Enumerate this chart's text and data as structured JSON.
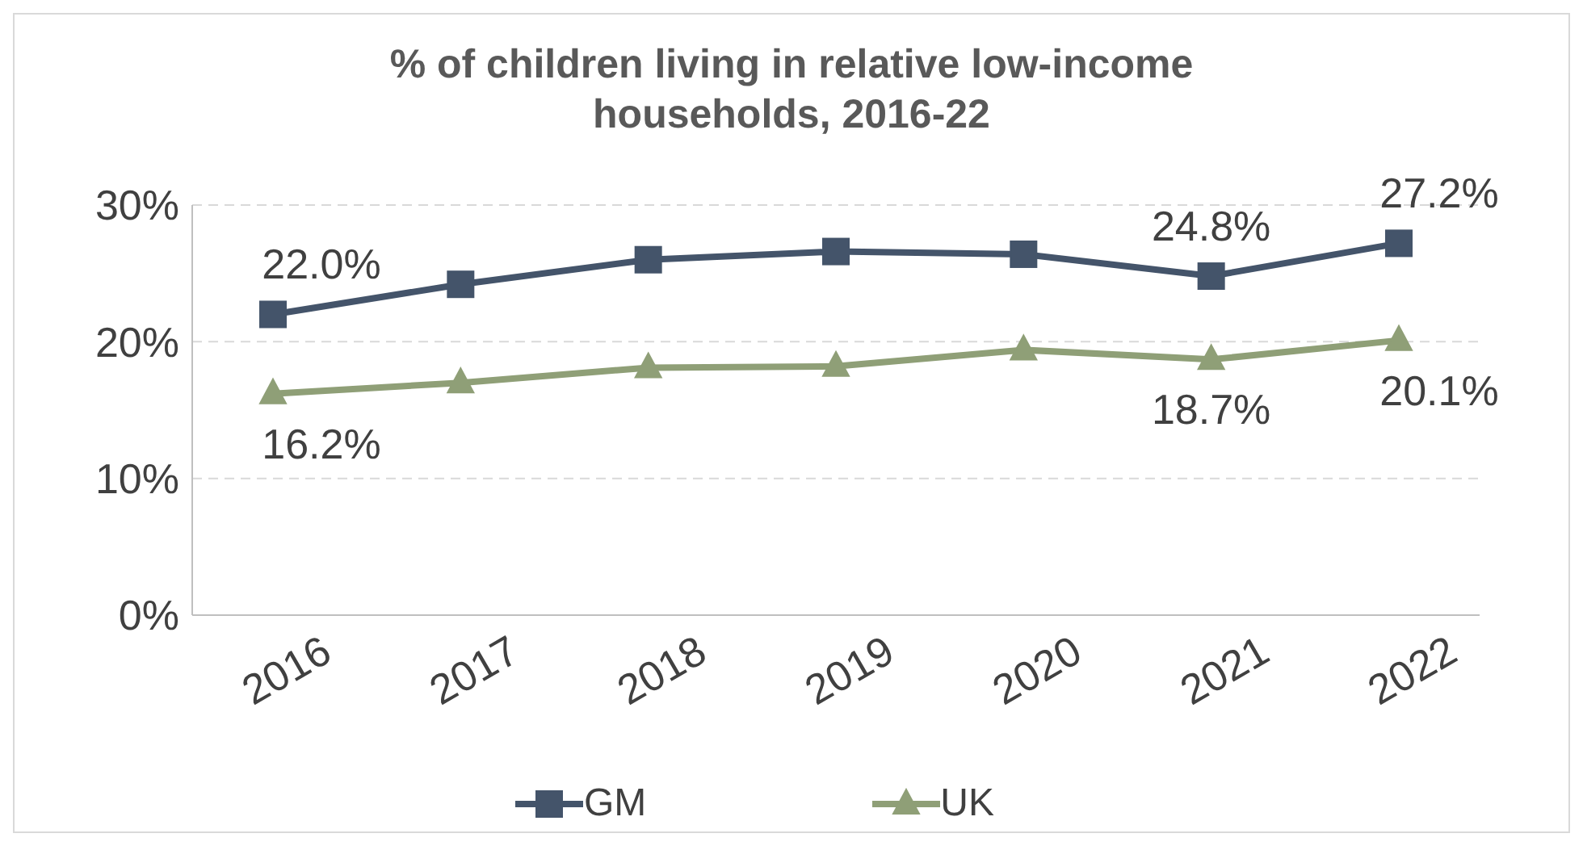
{
  "chart_data": {
    "type": "line",
    "title": "% of children living in relative low-income households, 2016-22",
    "categories": [
      "2016",
      "2017",
      "2018",
      "2019",
      "2020",
      "2021",
      "2022"
    ],
    "series": [
      {
        "name": "GM",
        "color": "#44546a",
        "marker": "square",
        "values": [
          22.0,
          24.2,
          26.0,
          26.6,
          26.4,
          24.8,
          27.2
        ],
        "value_labels": [
          "22.0%",
          null,
          null,
          null,
          null,
          "24.8%",
          "27.2%"
        ]
      },
      {
        "name": "UK",
        "color": "#8f9f77",
        "marker": "triangle",
        "values": [
          16.2,
          17.0,
          18.1,
          18.2,
          19.4,
          18.7,
          20.1
        ],
        "value_labels": [
          "16.2%",
          null,
          null,
          null,
          null,
          "18.7%",
          "20.1%"
        ]
      }
    ],
    "ylim": [
      0,
      30
    ],
    "yticks": [
      {
        "value": 0,
        "label": "0%"
      },
      {
        "value": 10,
        "label": "10%"
      },
      {
        "value": 20,
        "label": "20%"
      },
      {
        "value": 30,
        "label": "30%"
      }
    ],
    "grid": "y",
    "legend": "bottom",
    "line_style": "solid"
  }
}
